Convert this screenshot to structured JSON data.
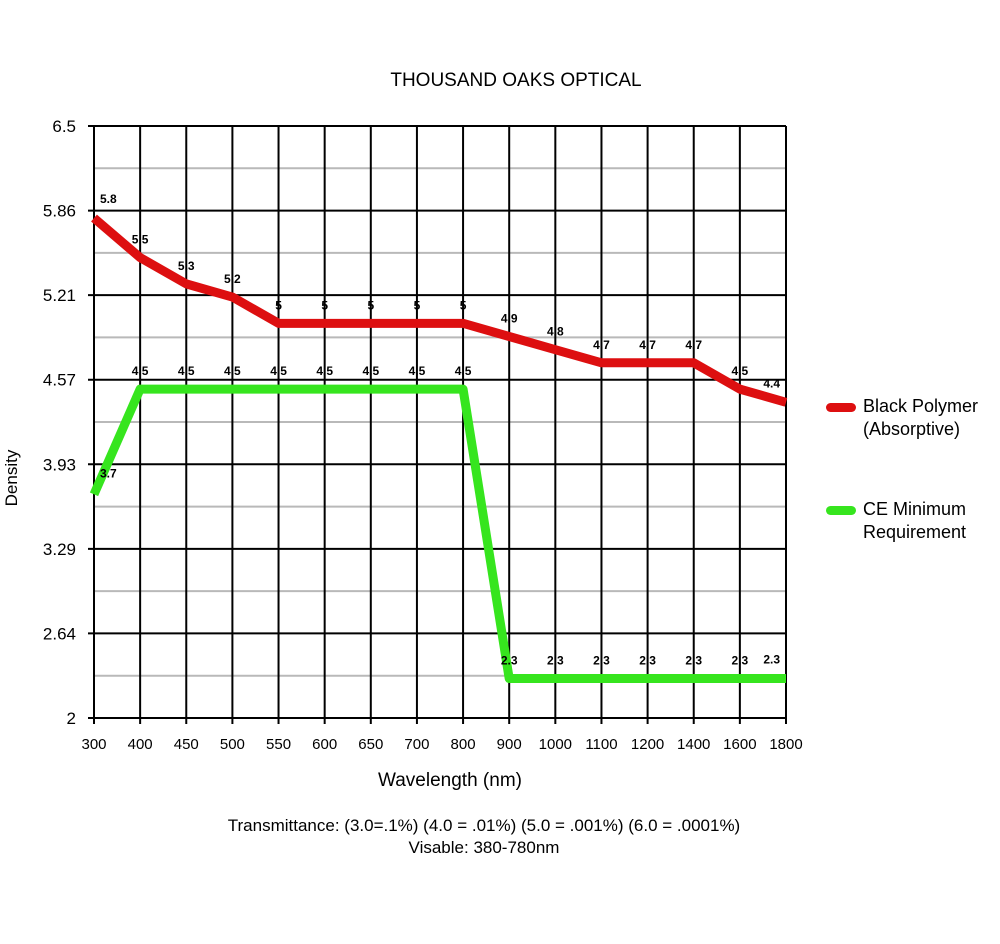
{
  "chart_data": {
    "type": "line",
    "title": "THOUSAND OAKS OPTICAL",
    "xlabel": "Wavelength (nm)",
    "ylabel": "Density",
    "categories": [
      "300",
      "400",
      "450",
      "500",
      "550",
      "600",
      "650",
      "700",
      "800",
      "900",
      "1000",
      "1100",
      "1200",
      "1400",
      "1600",
      "1800"
    ],
    "y_ticks": [
      "6.5",
      "5.86",
      "5.21",
      "4.57",
      "3.93",
      "3.29",
      "2.64",
      "2"
    ],
    "ylim": [
      2,
      6.5
    ],
    "grid": true,
    "legend_position": "right",
    "series": [
      {
        "name": "Black Polymer\n(Absorptive)",
        "color": "#dd0f10",
        "values": [
          5.8,
          5.5,
          5.3,
          5.2,
          5,
          5,
          5,
          5,
          5,
          4.9,
          4.8,
          4.7,
          4.7,
          4.7,
          4.5,
          4.4
        ],
        "labels": [
          "5.8",
          "5.5",
          "5.3",
          "5.2",
          "5",
          "5",
          "5",
          "5",
          "5",
          "4.9",
          "4.8",
          "4.7",
          "4.7",
          "4.7",
          "4.5",
          "4.4"
        ]
      },
      {
        "name": "CE Minimum\nRequirement",
        "color": "#36e51e",
        "values": [
          3.7,
          4.5,
          4.5,
          4.5,
          4.5,
          4.5,
          4.5,
          4.5,
          4.5,
          2.3,
          2.3,
          2.3,
          2.3,
          2.3,
          2.3,
          2.3
        ],
        "labels": [
          "3.7",
          "4.5",
          "4.5",
          "4.5",
          "4.5",
          "4.5",
          "4.5",
          "4.5",
          "4.5",
          "2.3",
          "2.3",
          "2.3",
          "2.3",
          "2.3",
          "2.3",
          "2.3"
        ]
      }
    ]
  },
  "footer": {
    "line1": "Transmittance: (3.0=.1%) (4.0 = .01%) (5.0 = .001%) (6.0 = .0001%)",
    "line2": "Visable: 380-780nm"
  }
}
